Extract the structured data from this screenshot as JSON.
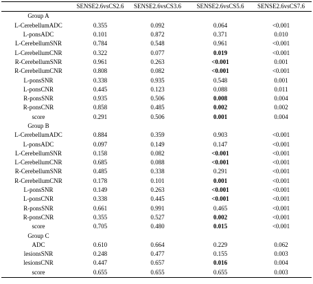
{
  "table": {
    "header": [
      "SENSE2.6vsCS2.6",
      "SENSE2.6vsCS3.6",
      "SENSE2.6vsCS5.6",
      "SENSE2.6vsCS7.6"
    ],
    "groups": [
      {
        "title": "Group A",
        "rows": [
          {
            "label": "L-CerebellumADC",
            "cells": [
              "0.355",
              "0.092",
              "0.064",
              "<0.001"
            ]
          },
          {
            "label": "L-ponsADC",
            "cells": [
              "0.101",
              "0.872",
              "0.371",
              "0.010"
            ]
          },
          {
            "label": "L-CerebellumSNR",
            "cells": [
              "0.784",
              "0.548",
              "0.961",
              "<0.001"
            ]
          },
          {
            "label": "L-CerebellumCNR",
            "cells": [
              "0.322",
              "0.077",
              {
                "text": "0.019",
                "bold": true
              },
              "<0.001"
            ]
          },
          {
            "label": "R-CerebellumSNR",
            "cells": [
              "0.961",
              "0.263",
              {
                "text": "<0.001",
                "bold": true
              },
              "0.001"
            ]
          },
          {
            "label": "R-CerebellumCNR",
            "cells": [
              "0.808",
              "0.082",
              {
                "text": "<0.001",
                "bold": true
              },
              "<0.001"
            ]
          },
          {
            "label": "L-ponsSNR",
            "cells": [
              "0.338",
              "0.935",
              "0.548",
              "0.001"
            ]
          },
          {
            "label": "L-ponsCNR",
            "cells": [
              "0.445",
              "0.123",
              "0.088",
              "0.011"
            ]
          },
          {
            "label": "R-ponsSNR",
            "cells": [
              "0.935",
              "0.506",
              {
                "text": "0.008",
                "bold": true
              },
              "0.004"
            ]
          },
          {
            "label": "R-ponsCNR",
            "cells": [
              "0.858",
              "0.485",
              {
                "text": "0.002",
                "bold": true
              },
              "0.002"
            ]
          },
          {
            "label": "score",
            "cells": [
              "0.291",
              "0.506",
              {
                "text": "0.001",
                "bold": true
              },
              "0.004"
            ]
          }
        ]
      },
      {
        "title": "Group B",
        "rows": [
          {
            "label": "L-CerebellumADC",
            "cells": [
              "0.884",
              "0.359",
              "0.903",
              "<0.001"
            ]
          },
          {
            "label": "L-ponsADC",
            "cells": [
              "0.097",
              "0.149",
              "0.147",
              "<0.001"
            ]
          },
          {
            "label": "L-CerebellumSNR",
            "cells": [
              "0.158",
              "0.082",
              {
                "text": "<0.001",
                "bold": true
              },
              "<0.001"
            ]
          },
          {
            "label": "L-CerebellumCNR",
            "cells": [
              "0.685",
              "0.088",
              {
                "text": "<0.001",
                "bold": true
              },
              "<0.001"
            ]
          },
          {
            "label": "R-CerebellumSNR",
            "cells": [
              "0.485",
              "0.338",
              "0.291",
              "<0.001"
            ]
          },
          {
            "label": "R-CerebellumCNR",
            "cells": [
              "0.178",
              "0.101",
              {
                "text": "0.001",
                "bold": true
              },
              "<0.001"
            ]
          },
          {
            "label": "L-ponsSNR",
            "cells": [
              "0.149",
              "0.263",
              {
                "text": "<0.001",
                "bold": true
              },
              "<0.001"
            ]
          },
          {
            "label": "L-ponsCNR",
            "cells": [
              "0.338",
              "0.445",
              {
                "text": "<0.001",
                "bold": true
              },
              "<0.001"
            ]
          },
          {
            "label": "R-ponsSNR",
            "cells": [
              "0.661",
              "0.991",
              "0.465",
              "<0.001"
            ]
          },
          {
            "label": "R-ponsCNR",
            "cells": [
              "0.355",
              "0.527",
              {
                "text": "0.002",
                "bold": true
              },
              "<0.001"
            ]
          },
          {
            "label": "score",
            "cells": [
              "0.705",
              "0.480",
              {
                "text": "0.015",
                "bold": true
              },
              "<0.001"
            ]
          }
        ]
      },
      {
        "title": "Group C",
        "rows": [
          {
            "label": "ADC",
            "cells": [
              "0.610",
              "0.664",
              "0.229",
              "0.062"
            ]
          },
          {
            "label": "lesionsSNR",
            "cells": [
              "0.248",
              "0.477",
              "0.155",
              "0.003"
            ]
          },
          {
            "label": "lesionsCNR",
            "cells": [
              "0.447",
              "0.657",
              {
                "text": "0.016",
                "bold": true
              },
              "0.004"
            ]
          },
          {
            "label": "score",
            "cells": [
              "0.655",
              "0.655",
              "0.655",
              "0.003"
            ]
          }
        ]
      }
    ]
  }
}
